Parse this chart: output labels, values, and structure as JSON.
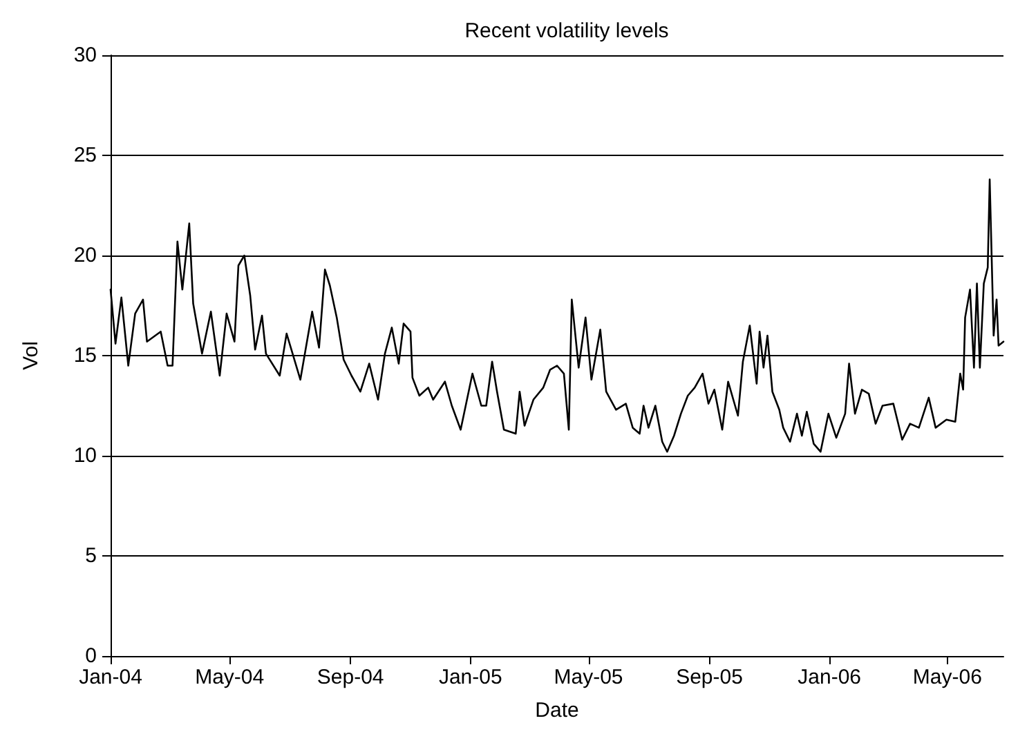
{
  "chart_data": {
    "type": "line",
    "title": "Recent volatility levels",
    "xlabel": "Date",
    "ylabel": "Vol",
    "x": [
      "2004-01-01",
      "2004-01-06",
      "2004-01-12",
      "2004-01-19",
      "2004-01-26",
      "2004-02-03",
      "2004-02-07",
      "2004-02-21",
      "2004-02-28",
      "2004-03-04",
      "2004-03-09",
      "2004-03-14",
      "2004-03-21",
      "2004-03-25",
      "2004-04-03",
      "2004-04-12",
      "2004-04-21",
      "2004-04-28",
      "2004-05-06",
      "2004-05-10",
      "2004-05-16",
      "2004-05-22",
      "2004-05-27",
      "2004-06-03",
      "2004-06-07",
      "2004-06-21",
      "2004-06-28",
      "2004-07-12",
      "2004-07-24",
      "2004-07-31",
      "2004-08-06",
      "2004-08-11",
      "2004-08-18",
      "2004-08-25",
      "2004-09-02",
      "2004-09-11",
      "2004-09-20",
      "2004-09-29",
      "2004-10-06",
      "2004-10-13",
      "2004-10-20",
      "2004-10-25",
      "2004-11-01",
      "2004-11-03",
      "2004-11-10",
      "2004-11-19",
      "2004-11-24",
      "2004-12-06",
      "2004-12-13",
      "2004-12-22",
      "2005-01-03",
      "2005-01-12",
      "2005-01-17",
      "2005-01-23",
      "2005-01-28",
      "2005-02-04",
      "2005-02-16",
      "2005-02-20",
      "2005-02-25",
      "2005-03-06",
      "2005-03-16",
      "2005-03-23",
      "2005-03-30",
      "2005-04-06",
      "2005-04-11",
      "2005-04-14",
      "2005-04-21",
      "2005-04-28",
      "2005-05-04",
      "2005-05-13",
      "2005-05-19",
      "2005-05-29",
      "2005-06-08",
      "2005-06-15",
      "2005-06-22",
      "2005-06-26",
      "2005-07-01",
      "2005-07-08",
      "2005-07-15",
      "2005-07-20",
      "2005-07-27",
      "2005-08-03",
      "2005-08-10",
      "2005-08-17",
      "2005-08-25",
      "2005-08-31",
      "2005-09-06",
      "2005-09-14",
      "2005-09-20",
      "2005-09-30",
      "2005-10-05",
      "2005-10-12",
      "2005-10-19",
      "2005-10-22",
      "2005-10-26",
      "2005-10-30",
      "2005-11-04",
      "2005-11-11",
      "2005-11-15",
      "2005-11-22",
      "2005-11-29",
      "2005-12-04",
      "2005-12-09",
      "2005-12-16",
      "2005-12-23",
      "2005-12-31",
      "2006-01-08",
      "2006-01-17",
      "2006-01-21",
      "2006-01-27",
      "2006-02-03",
      "2006-02-10",
      "2006-02-17",
      "2006-02-24",
      "2006-03-07",
      "2006-03-16",
      "2006-03-24",
      "2006-04-02",
      "2006-04-12",
      "2006-04-19",
      "2006-04-30",
      "2006-05-09",
      "2006-05-14",
      "2006-05-17",
      "2006-05-19",
      "2006-05-24",
      "2006-05-28",
      "2006-05-31",
      "2006-06-03",
      "2006-06-07",
      "2006-06-11",
      "2006-06-13",
      "2006-06-17",
      "2006-06-20",
      "2006-06-22",
      "2006-06-27"
    ],
    "series": [
      {
        "color": "#000000",
        "values": [
          18.3,
          15.6,
          17.9,
          14.5,
          17.1,
          17.8,
          15.7,
          16.2,
          14.5,
          14.5,
          20.7,
          18.3,
          21.6,
          17.6,
          15.1,
          17.2,
          14.0,
          17.1,
          15.7,
          19.5,
          20.0,
          18.0,
          15.3,
          17.0,
          15.1,
          14.0,
          16.1,
          13.8,
          17.2,
          15.4,
          19.3,
          18.5,
          16.9,
          14.8,
          14.0,
          13.2,
          14.6,
          12.8,
          15.1,
          16.4,
          14.6,
          16.6,
          16.2,
          13.9,
          13.0,
          13.4,
          12.8,
          13.7,
          12.5,
          11.3,
          14.1,
          12.5,
          12.5,
          14.7,
          13.2,
          11.3,
          11.1,
          13.2,
          11.5,
          12.8,
          13.4,
          14.3,
          14.5,
          14.1,
          11.3,
          17.8,
          14.4,
          16.9,
          13.8,
          16.3,
          13.2,
          12.3,
          12.6,
          11.4,
          11.1,
          12.5,
          11.4,
          12.5,
          10.7,
          10.2,
          11.0,
          12.1,
          13.0,
          13.4,
          14.1,
          12.6,
          13.3,
          11.3,
          13.7,
          12.0,
          14.7,
          16.5,
          13.6,
          16.2,
          14.4,
          16.0,
          13.2,
          12.3,
          11.4,
          10.7,
          12.1,
          11.0,
          12.2,
          10.6,
          10.2,
          12.1,
          10.9,
          12.1,
          14.6,
          12.1,
          13.3,
          13.1,
          11.6,
          12.5,
          12.6,
          10.8,
          11.6,
          11.4,
          12.9,
          11.4,
          11.8,
          11.7,
          14.1,
          13.3,
          16.9,
          18.3,
          14.4,
          18.6,
          14.4,
          18.6,
          19.4,
          23.8,
          16.0,
          17.8,
          15.5,
          15.7
        ]
      }
    ],
    "xlim": [
      "2004-01-01",
      "2006-06-27"
    ],
    "xticks": [
      {
        "value": "2004-01-01",
        "label": "Jan-04"
      },
      {
        "value": "2004-05-01",
        "label": "May-04"
      },
      {
        "value": "2004-09-01",
        "label": "Sep-04"
      },
      {
        "value": "2005-01-01",
        "label": "Jan-05"
      },
      {
        "value": "2005-05-01",
        "label": "May-05"
      },
      {
        "value": "2005-09-01",
        "label": "Sep-05"
      },
      {
        "value": "2006-01-01",
        "label": "Jan-06"
      },
      {
        "value": "2006-05-01",
        "label": "May-06"
      }
    ],
    "ylim": [
      0,
      30
    ],
    "yticks": [
      0,
      5,
      10,
      15,
      20,
      25,
      30
    ],
    "grid": "y",
    "marker": "none",
    "line_style": "solid"
  }
}
